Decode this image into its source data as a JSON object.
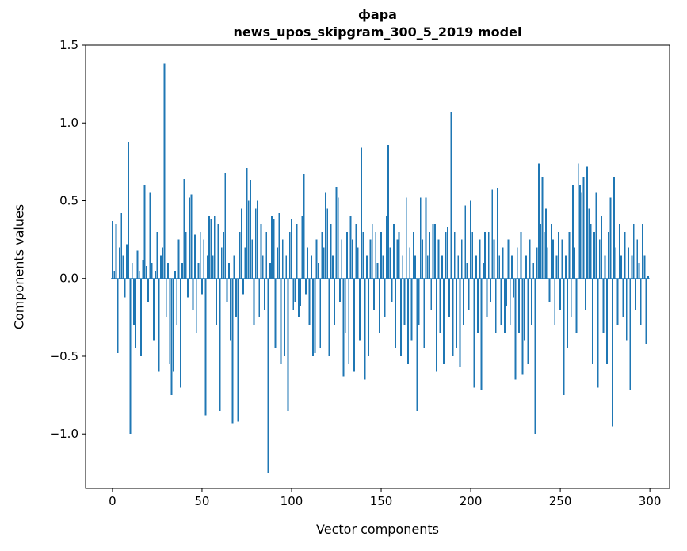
{
  "figure": {
    "title_line1": "фара",
    "title_line2": "news_upos_skipgram_300_5_2019 model",
    "xlabel": "Vector components",
    "ylabel": "Components values"
  },
  "chart_data": {
    "type": "bar",
    "title": "фара",
    "subtitle": "news_upos_skipgram_300_5_2019 model",
    "xlabel": "Vector components",
    "ylabel": "Components values",
    "bar_color": "#1f77b4",
    "grid": false,
    "legend": "none",
    "xlim": [
      -15,
      311
    ],
    "ylim": [
      -1.35,
      1.5
    ],
    "xtick_values": [
      0,
      50,
      100,
      150,
      200,
      250,
      300
    ],
    "xtick_labels": [
      "0",
      "50",
      "100",
      "150",
      "200",
      "250",
      "300"
    ],
    "ytick_values": [
      -1.0,
      -0.5,
      0.0,
      0.5,
      1.0,
      1.5
    ],
    "ytick_labels": [
      "−1.0",
      "−0.5",
      "0.0",
      "0.5",
      "1.0",
      "1.5"
    ],
    "x_start": 0,
    "values": [
      0.37,
      0.05,
      0.35,
      -0.48,
      0.2,
      0.42,
      0.15,
      -0.12,
      0.22,
      0.88,
      -1.0,
      0.1,
      -0.3,
      -0.45,
      0.18,
      0.05,
      -0.5,
      0.12,
      0.6,
      0.08,
      -0.15,
      0.55,
      0.1,
      -0.4,
      0.05,
      0.3,
      -0.6,
      0.15,
      0.2,
      1.38,
      -0.25,
      0.1,
      -0.55,
      -0.75,
      -0.6,
      0.05,
      -0.3,
      0.25,
      -0.7,
      0.1,
      0.64,
      0.3,
      -0.12,
      0.52,
      0.54,
      -0.2,
      0.28,
      -0.35,
      0.1,
      0.3,
      -0.1,
      0.25,
      -0.88,
      0.15,
      0.4,
      0.38,
      0.15,
      0.4,
      -0.3,
      0.35,
      -0.85,
      0.2,
      0.3,
      0.68,
      -0.15,
      0.1,
      -0.4,
      -0.93,
      0.15,
      -0.25,
      -0.92,
      0.3,
      0.45,
      -0.1,
      0.2,
      0.71,
      0.5,
      0.63,
      0.25,
      -0.3,
      0.45,
      0.5,
      -0.25,
      0.35,
      0.15,
      -0.2,
      0.3,
      -1.25,
      0.1,
      0.4,
      0.38,
      -0.45,
      0.2,
      0.42,
      -0.55,
      0.25,
      -0.5,
      0.15,
      -0.85,
      0.3,
      0.38,
      -0.2,
      -0.15,
      0.35,
      -0.25,
      -0.18,
      0.4,
      0.67,
      -0.1,
      0.2,
      -0.3,
      0.15,
      -0.5,
      -0.48,
      0.25,
      0.1,
      -0.45,
      0.3,
      0.2,
      0.55,
      0.45,
      -0.5,
      0.35,
      0.15,
      -0.3,
      0.59,
      0.52,
      -0.15,
      0.25,
      -0.63,
      -0.35,
      0.3,
      -0.55,
      0.4,
      0.25,
      -0.6,
      0.35,
      0.2,
      -0.4,
      0.84,
      0.3,
      -0.65,
      0.15,
      -0.5,
      0.25,
      0.35,
      -0.2,
      0.3,
      0.1,
      -0.35,
      0.3,
      0.15,
      -0.25,
      0.4,
      0.86,
      0.2,
      -0.15,
      0.35,
      -0.45,
      0.25,
      0.3,
      -0.5,
      0.15,
      -0.3,
      0.52,
      -0.55,
      0.2,
      -0.4,
      0.3,
      0.15,
      -0.85,
      -0.3,
      0.52,
      0.25,
      -0.45,
      0.52,
      0.15,
      0.3,
      -0.2,
      0.35,
      0.35,
      -0.6,
      0.25,
      -0.35,
      0.15,
      -0.55,
      0.3,
      0.33,
      -0.25,
      1.07,
      -0.5,
      0.3,
      -0.45,
      0.15,
      -0.57,
      0.25,
      -0.3,
      0.47,
      0.1,
      -0.2,
      0.5,
      0.3,
      -0.7,
      0.15,
      -0.35,
      0.25,
      -0.72,
      0.1,
      0.3,
      -0.25,
      0.3,
      -0.15,
      0.57,
      0.25,
      -0.35,
      0.58,
      0.15,
      -0.3,
      0.2,
      -0.35,
      -0.18,
      0.25,
      -0.3,
      0.15,
      -0.12,
      -0.65,
      0.2,
      -0.35,
      0.3,
      -0.62,
      -0.4,
      0.15,
      -0.55,
      0.25,
      -0.3,
      0.1,
      -1.0,
      0.2,
      0.74,
      0.35,
      0.65,
      0.3,
      0.45,
      0.2,
      -0.15,
      0.35,
      0.25,
      -0.3,
      0.15,
      0.3,
      -0.2,
      0.25,
      -0.75,
      0.15,
      -0.45,
      0.3,
      -0.25,
      0.6,
      0.2,
      -0.35,
      0.74,
      0.6,
      0.55,
      0.65,
      -0.2,
      0.72,
      0.45,
      0.35,
      -0.55,
      0.3,
      0.55,
      -0.7,
      0.25,
      0.4,
      -0.35,
      0.15,
      -0.55,
      0.3,
      0.52,
      -0.95,
      0.65,
      0.2,
      -0.3,
      0.35,
      0.15,
      -0.25,
      0.3,
      -0.4,
      0.2,
      -0.72,
      0.15,
      0.35,
      -0.2,
      0.25,
      0.1,
      -0.3,
      0.35,
      0.15,
      -0.42,
      0.02
    ]
  }
}
